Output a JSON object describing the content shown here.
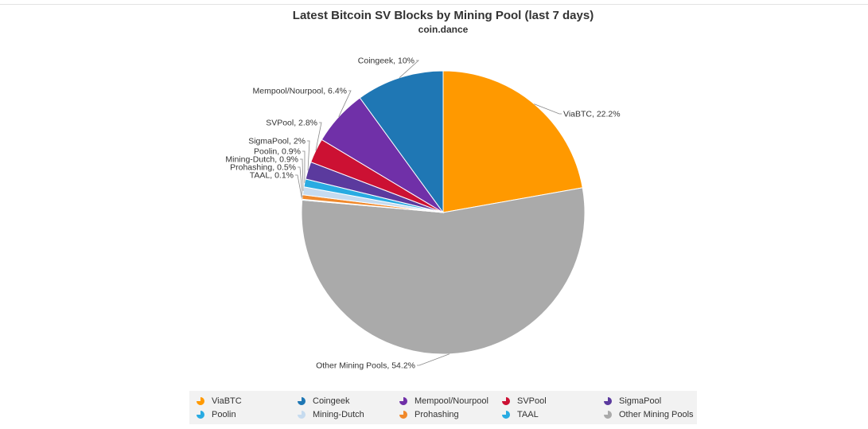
{
  "chart_data": {
    "type": "pie",
    "title": "Latest Bitcoin SV Blocks by Mining Pool (last 7 days)",
    "subtitle": "coin.dance",
    "legend_position": "bottom",
    "slices": [
      {
        "name": "ViaBTC",
        "value": 22.2,
        "label": "ViaBTC, 22.2%",
        "color": "#ff9900"
      },
      {
        "name": "Other Mining Pools",
        "value": 54.2,
        "label": "Other Mining Pools, 54.2%",
        "color": "#aaaaaa"
      },
      {
        "name": "TAAL",
        "value": 0.1,
        "label": "TAAL, 0.1%",
        "color": "#29abe2"
      },
      {
        "name": "Prohashing",
        "value": 0.5,
        "label": "Prohashing, 0.5%",
        "color": "#f0892c"
      },
      {
        "name": "Mining-Dutch",
        "value": 0.9,
        "label": "Mining-Dutch, 0.9%",
        "color": "#c6dbef"
      },
      {
        "name": "Poolin",
        "value": 0.9,
        "label": "Poolin, 0.9%",
        "color": "#29abe2"
      },
      {
        "name": "SigmaPool",
        "value": 2,
        "label": "SigmaPool, 2%",
        "color": "#5b3a9e"
      },
      {
        "name": "SVPool",
        "value": 2.8,
        "label": "SVPool, 2.8%",
        "color": "#cc1133"
      },
      {
        "name": "Mempool/Nourpool",
        "value": 6.4,
        "label": "Mempool/Nourpool, 6.4%",
        "color": "#7030a8"
      },
      {
        "name": "Coingeek",
        "value": 10,
        "label": "Coingeek, 10%",
        "color": "#1f77b4"
      }
    ]
  },
  "legend": {
    "items": [
      {
        "label": "ViaBTC",
        "color": "#ff9900"
      },
      {
        "label": "Coingeek",
        "color": "#1f77b4"
      },
      {
        "label": "Mempool/Nourpool",
        "color": "#7030a8"
      },
      {
        "label": "SVPool",
        "color": "#cc1133"
      },
      {
        "label": "SigmaPool",
        "color": "#5b3a9e"
      },
      {
        "label": "Poolin",
        "color": "#29abe2"
      },
      {
        "label": "Mining-Dutch",
        "color": "#c6dbef"
      },
      {
        "label": "Prohashing",
        "color": "#f0892c"
      },
      {
        "label": "TAAL",
        "color": "#29abe2"
      },
      {
        "label": "Other Mining Pools",
        "color": "#aaaaaa"
      }
    ]
  }
}
